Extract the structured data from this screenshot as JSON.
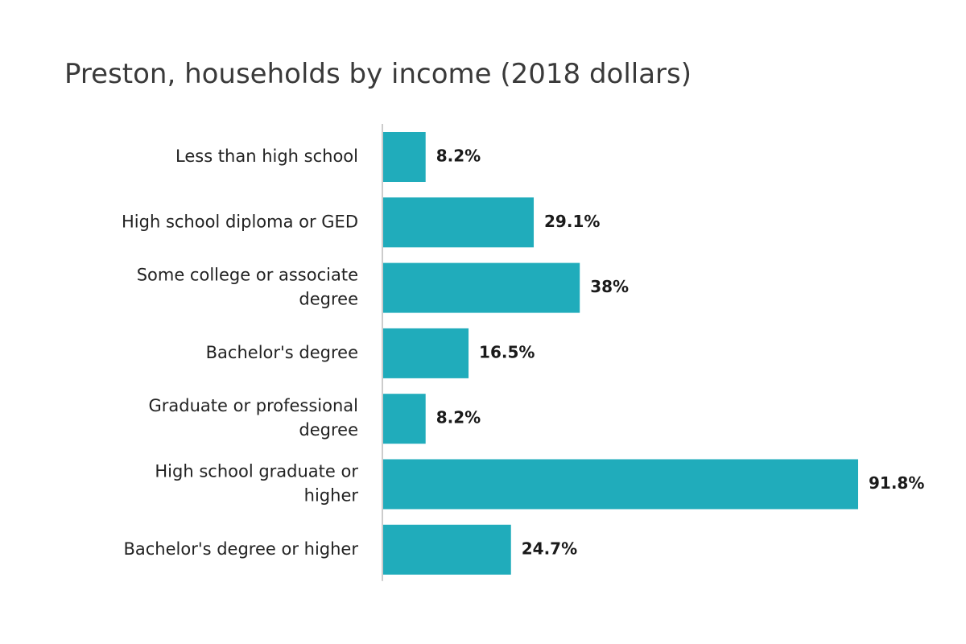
{
  "chart_data": {
    "type": "bar",
    "orientation": "horizontal",
    "title": "Preston, households by income (2018 dollars)",
    "categories": [
      "Less than high school",
      "High school diploma or GED",
      "Some college or associate degree",
      "Bachelor's degree",
      "Graduate or professional degree",
      "High school graduate or higher",
      "Bachelor's degree or higher"
    ],
    "values": [
      8.2,
      29.1,
      38,
      16.5,
      8.2,
      91.8,
      24.7
    ],
    "value_labels": [
      "8.2%",
      "29.1%",
      "38%",
      "16.5%",
      "8.2%",
      "91.8%",
      "24.7%"
    ],
    "xlabel": "",
    "ylabel": "",
    "xlim": [
      0,
      100
    ],
    "grid": false,
    "legend": "none",
    "bar_color": "#20acbb",
    "axis_color": "#cccccc"
  }
}
